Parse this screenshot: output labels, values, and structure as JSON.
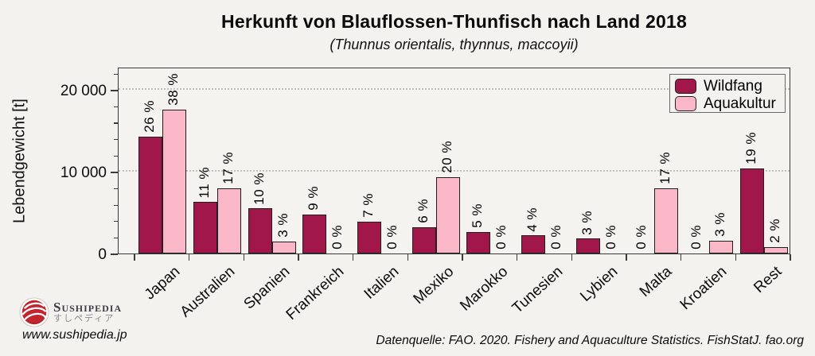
{
  "header": {
    "title": "Herkunft von Blauflossen-Thunfisch nach Land 2018",
    "subtitle": "(Thunnus orientalis, thynnus, maccoyii)"
  },
  "chart_data": {
    "type": "bar",
    "title": "Herkunft von Blauflossen-Thunfisch nach Land 2018",
    "subtitle": "(Thunnus orientalis, thynnus, maccoyii)",
    "categories": [
      "Japan",
      "Australien",
      "Spanien",
      "Frankreich",
      "Italien",
      "Mexiko",
      "Marokko",
      "Tunesien",
      "Lybien",
      "Malta",
      "Kroatien",
      "Rest"
    ],
    "series": [
      {
        "name": "Wildfang",
        "color": "#a1174a",
        "values": [
          14300,
          6300,
          5500,
          4800,
          3900,
          3200,
          2600,
          2200,
          1800,
          0,
          0,
          10400
        ],
        "percent_labels": [
          "26 %",
          "11 %",
          "10 %",
          "9 %",
          "7 %",
          "6 %",
          "5 %",
          "4 %",
          "3 %",
          "0 %",
          "0 %",
          "19 %"
        ]
      },
      {
        "name": "Aquakultur",
        "color": "#f9b7c8",
        "values": [
          17600,
          8000,
          1500,
          0,
          0,
          9300,
          0,
          0,
          0,
          8000,
          1600,
          800
        ],
        "percent_labels": [
          "38 %",
          "17 %",
          "3 %",
          "0 %",
          "0 %",
          "20 %",
          "0 %",
          "0 %",
          "0 %",
          "17 %",
          "3 %",
          "2 %"
        ]
      }
    ],
    "xlabel": "",
    "ylabel": "Lebendgewicht [t]",
    "ylim": [
      0,
      22800
    ],
    "yticks": [
      0,
      10000,
      20000
    ],
    "ytick_labels": [
      "0",
      "10 000",
      "20 000"
    ],
    "y_minor_step": 2000,
    "grid": "horizontal dotted lines at major ticks",
    "legend_position": "top-right inside plot",
    "bar_unit": "Tonnen Lebendgewicht (aus Achse geschätzt)"
  },
  "legend": {
    "items": [
      {
        "label": "Wildfang",
        "color": "#a1174a"
      },
      {
        "label": "Aquakultur",
        "color": "#f9b7c8"
      }
    ]
  },
  "footer": {
    "brand": "Sushipedia",
    "brand_jp": "すしペディア",
    "url": "www.sushipedia.jp",
    "source": "Datenquelle: FAO. 2020. Fishery and Aquaculture Statistics. FishStatJ. fao.org"
  },
  "colors": {
    "wildfang": "#a1174a",
    "aquakultur": "#f9b7c8",
    "background": "#f4f2ef",
    "frame": "#3a3a3a",
    "logo_red": "#c4242e"
  }
}
